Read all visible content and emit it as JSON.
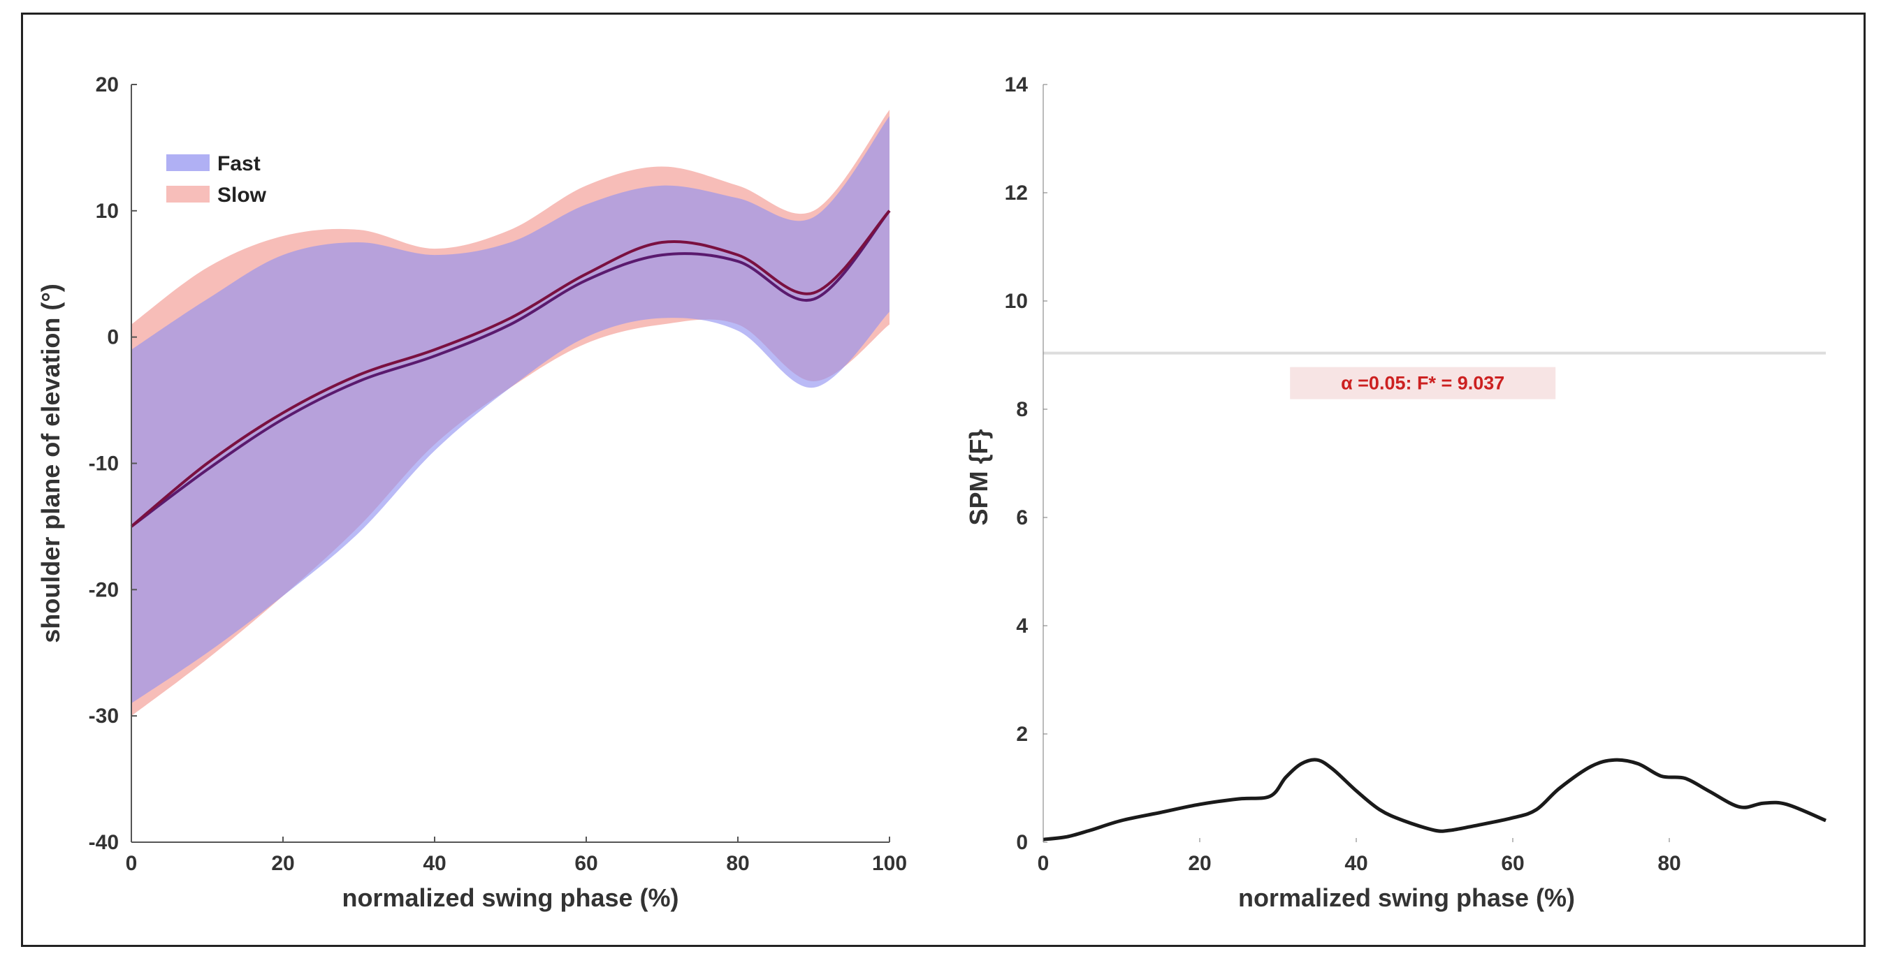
{
  "chart_data": [
    {
      "type": "area",
      "xlabel": "normalized swing phase (%)",
      "ylabel": "shoulder plane of elevation (°)",
      "xlim": [
        0,
        100
      ],
      "ylim": [
        -40,
        20
      ],
      "xticks": [
        0,
        20,
        40,
        60,
        80,
        100
      ],
      "yticks": [
        -40,
        -30,
        -20,
        -10,
        0,
        10,
        20
      ],
      "legend_position": "top-left",
      "x": [
        0,
        10,
        20,
        30,
        40,
        50,
        60,
        70,
        80,
        90,
        100
      ],
      "series": [
        {
          "name": "Fast",
          "color": "#8f8ff0",
          "mean": [
            -15,
            -10.5,
            -6.5,
            -3.5,
            -1.5,
            1,
            4.5,
            6.5,
            6,
            3,
            10
          ],
          "upper": [
            -1,
            3,
            6.5,
            7.5,
            6.5,
            7.5,
            10.5,
            12,
            11,
            9.5,
            17.5
          ],
          "lower": [
            -29,
            -25,
            -20.5,
            -15.5,
            -9,
            -4,
            0,
            1.5,
            0.5,
            -4,
            2
          ]
        },
        {
          "name": "Slow",
          "color": "#f4a39d",
          "mean": [
            -15,
            -10,
            -6,
            -3,
            -1,
            1.5,
            5,
            7.5,
            6.5,
            3.5,
            10
          ],
          "upper": [
            1,
            5.5,
            8,
            8.5,
            7,
            8.5,
            12,
            13.5,
            12,
            10,
            18
          ],
          "lower": [
            -30,
            -25.5,
            -20.5,
            -15,
            -8.5,
            -4,
            -0.5,
            1,
            1,
            -3.5,
            1
          ]
        }
      ]
    },
    {
      "type": "line",
      "xlabel": "normalized swing phase (%)",
      "ylabel": "SPM {F}",
      "xlim": [
        0,
        100
      ],
      "ylim": [
        0,
        14
      ],
      "xticks": [
        0,
        20,
        40,
        60,
        80
      ],
      "yticks": [
        0,
        2,
        4,
        6,
        8,
        10,
        12,
        14
      ],
      "threshold": 9.037,
      "threshold_label": "α =0.05: F* = 9.037",
      "x": [
        0,
        3,
        6,
        10,
        15,
        20,
        25,
        29,
        31,
        33,
        35,
        37,
        40,
        43,
        46,
        50,
        52,
        55,
        60,
        63,
        66,
        70,
        73,
        76,
        79,
        82,
        85,
        89,
        92,
        95,
        100
      ],
      "values": [
        0.05,
        0.1,
        0.22,
        0.4,
        0.55,
        0.7,
        0.8,
        0.85,
        1.2,
        1.45,
        1.52,
        1.35,
        0.95,
        0.6,
        0.4,
        0.22,
        0.22,
        0.3,
        0.45,
        0.6,
        1.0,
        1.4,
        1.52,
        1.45,
        1.22,
        1.18,
        0.95,
        0.65,
        0.72,
        0.7,
        0.4
      ]
    }
  ]
}
